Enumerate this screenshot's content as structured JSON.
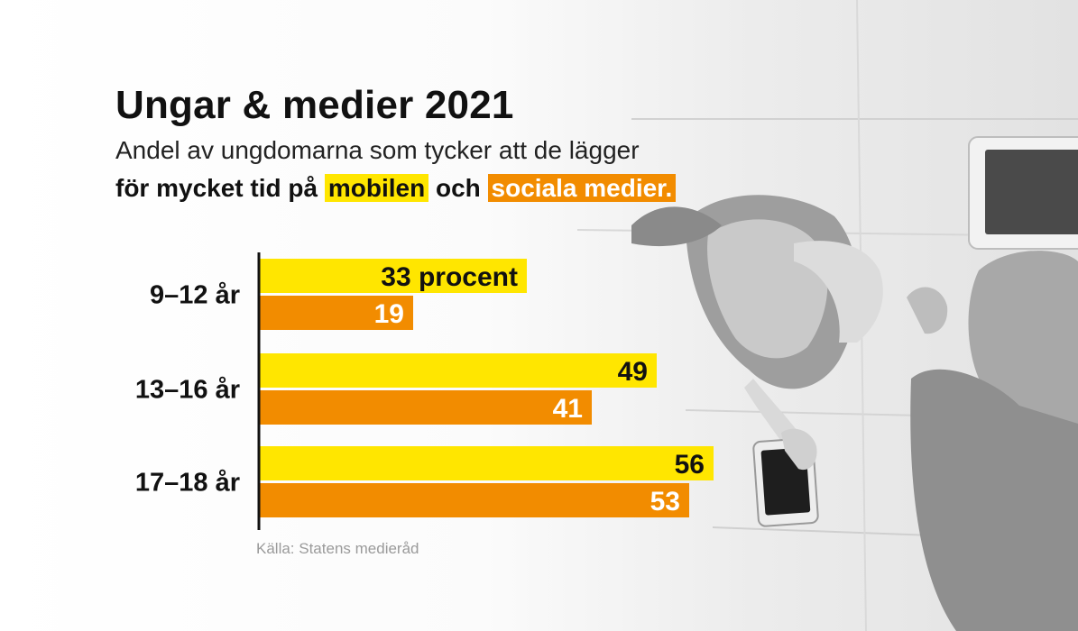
{
  "title": "Ungar & medier 2021",
  "subtitle_line1": "Andel av ungdomarna som tycker att de lägger",
  "subtitle_line2_prefix": "för mycket tid på",
  "highlight_mobile": "mobilen",
  "subtitle_line2_mid": "och",
  "highlight_social": "sociala medier.",
  "source": "Källa: Statens medieråd",
  "first_label_suffix": " procent",
  "colors": {
    "mobile": "#ffe600",
    "social": "#f28c00",
    "axis": "#111111"
  },
  "chart_data": {
    "type": "bar",
    "orientation": "horizontal",
    "categories": [
      "9–12 år",
      "13–16 år",
      "17–18 år"
    ],
    "series": [
      {
        "key": "mobile",
        "values": [
          33,
          49,
          56
        ]
      },
      {
        "key": "social",
        "values": [
          19,
          41,
          53
        ]
      }
    ],
    "unit": "procent",
    "xlim": [
      0,
      100
    ],
    "grid": false,
    "legend": "none"
  }
}
